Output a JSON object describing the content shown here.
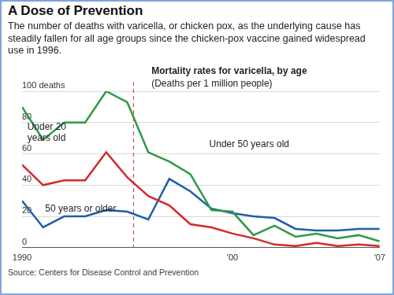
{
  "chart_data": {
    "type": "line",
    "title": "A Dose of Prevention",
    "subtitle": "The number of deaths with varicella, or chicken pox, as the underlying cause has steadily fallen for all age groups since the chicken-pox vaccine gained widespread use in 1996.",
    "annotations": [
      "Mortality rates for varicella, by age",
      "(Deaths per 1 million people)"
    ],
    "source": "Source: Centers for Disease Control and Prevention",
    "x": [
      1990,
      1991,
      1992,
      1993,
      1994,
      1995,
      1996,
      1997,
      1998,
      1999,
      2000,
      2001,
      2002,
      2003,
      2004,
      2005,
      2006,
      2007
    ],
    "series": [
      {
        "name": "Under 50 years old",
        "color": "#2f9a46",
        "values": [
          90,
          69,
          80,
          80,
          100,
          93,
          61,
          55,
          47,
          24,
          23,
          8,
          14,
          7,
          9,
          6,
          8,
          4
        ]
      },
      {
        "name": "Under 20 years old",
        "color": "#d42a2a",
        "values": [
          53,
          40,
          43,
          43,
          61,
          45,
          33,
          27,
          15,
          13,
          9,
          6,
          2,
          1,
          3,
          1,
          2,
          1
        ]
      },
      {
        "name": "50 years or older",
        "color": "#1f5fa8",
        "values": [
          30,
          13,
          20,
          20,
          24,
          23,
          18,
          44,
          36,
          25,
          22,
          20,
          19,
          12,
          11,
          11,
          12,
          12
        ]
      }
    ],
    "xlim": [
      1990,
      2007
    ],
    "xticks": [
      1990,
      {
        "value": 2000,
        "label": "'00"
      },
      {
        "value": 2007,
        "label": "'07"
      }
    ],
    "ylim": [
      0,
      100
    ],
    "yticks": [
      0,
      20,
      40,
      60,
      80,
      {
        "value": 100,
        "label": "100 deaths"
      }
    ],
    "grid": true,
    "vertical_line": {
      "x": 1995.3,
      "color": "#c8506a",
      "line_style": "dashed"
    }
  }
}
